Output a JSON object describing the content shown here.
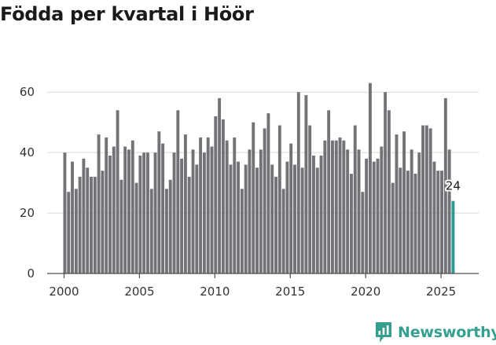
{
  "title": "Födda per kvartal i Höör",
  "brand": {
    "name": "Newsworthy",
    "logo_icon": "newsworthy-logo-icon",
    "color": "#35a08f"
  },
  "chart_data": {
    "type": "bar",
    "title": "Födda per kvartal i Höör",
    "xlabel": "",
    "ylabel": "",
    "ylim": [
      0,
      65
    ],
    "yticks": [
      0,
      20,
      40,
      60
    ],
    "xticks": [
      2000,
      2005,
      2010,
      2015,
      2020,
      2025
    ],
    "grid": true,
    "bar_color": "#737377",
    "highlight_color": "#2a9d8f",
    "start_year": 2000,
    "start_quarter": 1,
    "values": [
      40,
      27,
      37,
      28,
      32,
      38,
      35,
      32,
      32,
      46,
      34,
      45,
      39,
      42,
      54,
      31,
      42,
      41,
      44,
      30,
      39,
      40,
      40,
      28,
      40,
      47,
      43,
      28,
      31,
      40,
      54,
      38,
      46,
      32,
      41,
      36,
      45,
      40,
      45,
      42,
      52,
      58,
      51,
      44,
      36,
      45,
      37,
      28,
      36,
      41,
      50,
      35,
      41,
      48,
      53,
      36,
      32,
      49,
      28,
      37,
      43,
      36,
      60,
      35,
      59,
      49,
      39,
      35,
      39,
      44,
      54,
      44,
      44,
      45,
      44,
      41,
      33,
      49,
      41,
      27,
      38,
      63,
      37,
      38,
      42,
      60,
      54,
      30,
      46,
      35,
      47,
      34,
      41,
      33,
      40,
      49,
      49,
      48,
      37,
      34,
      34,
      58,
      41,
      24
    ],
    "highlight": {
      "index": 103,
      "label": "24"
    }
  }
}
